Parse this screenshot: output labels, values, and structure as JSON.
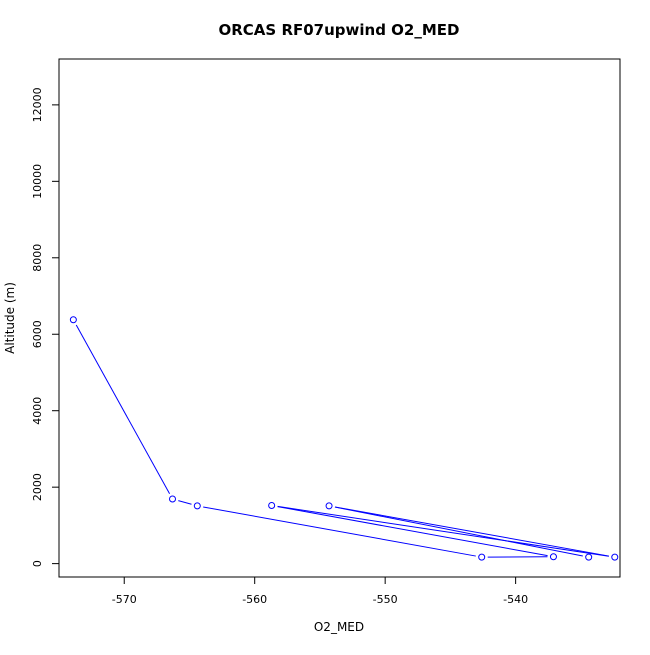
{
  "chart_data": {
    "type": "line",
    "title": "ORCAS RF07upwind O2_MED",
    "xlabel": "O2_MED",
    "ylabel": "Altitude (m)",
    "xlim": [
      -575,
      -532
    ],
    "ylim": [
      -350,
      13200
    ],
    "xticks": [
      -570,
      -560,
      -550,
      -540
    ],
    "yticks": [
      0,
      2000,
      4000,
      6000,
      8000,
      10000,
      12000
    ],
    "grid": false,
    "legend": "none",
    "series": [
      {
        "color": "#0000ff",
        "marker": "open-circle",
        "x": [
          -573.9,
          -566.3,
          -564.4,
          -542.6,
          -537.1,
          -558.7,
          -532.4,
          -554.3,
          -534.4
        ],
        "y": [
          6380,
          1690,
          1510,
          170,
          180,
          1520,
          170,
          1510,
          170
        ]
      }
    ]
  }
}
